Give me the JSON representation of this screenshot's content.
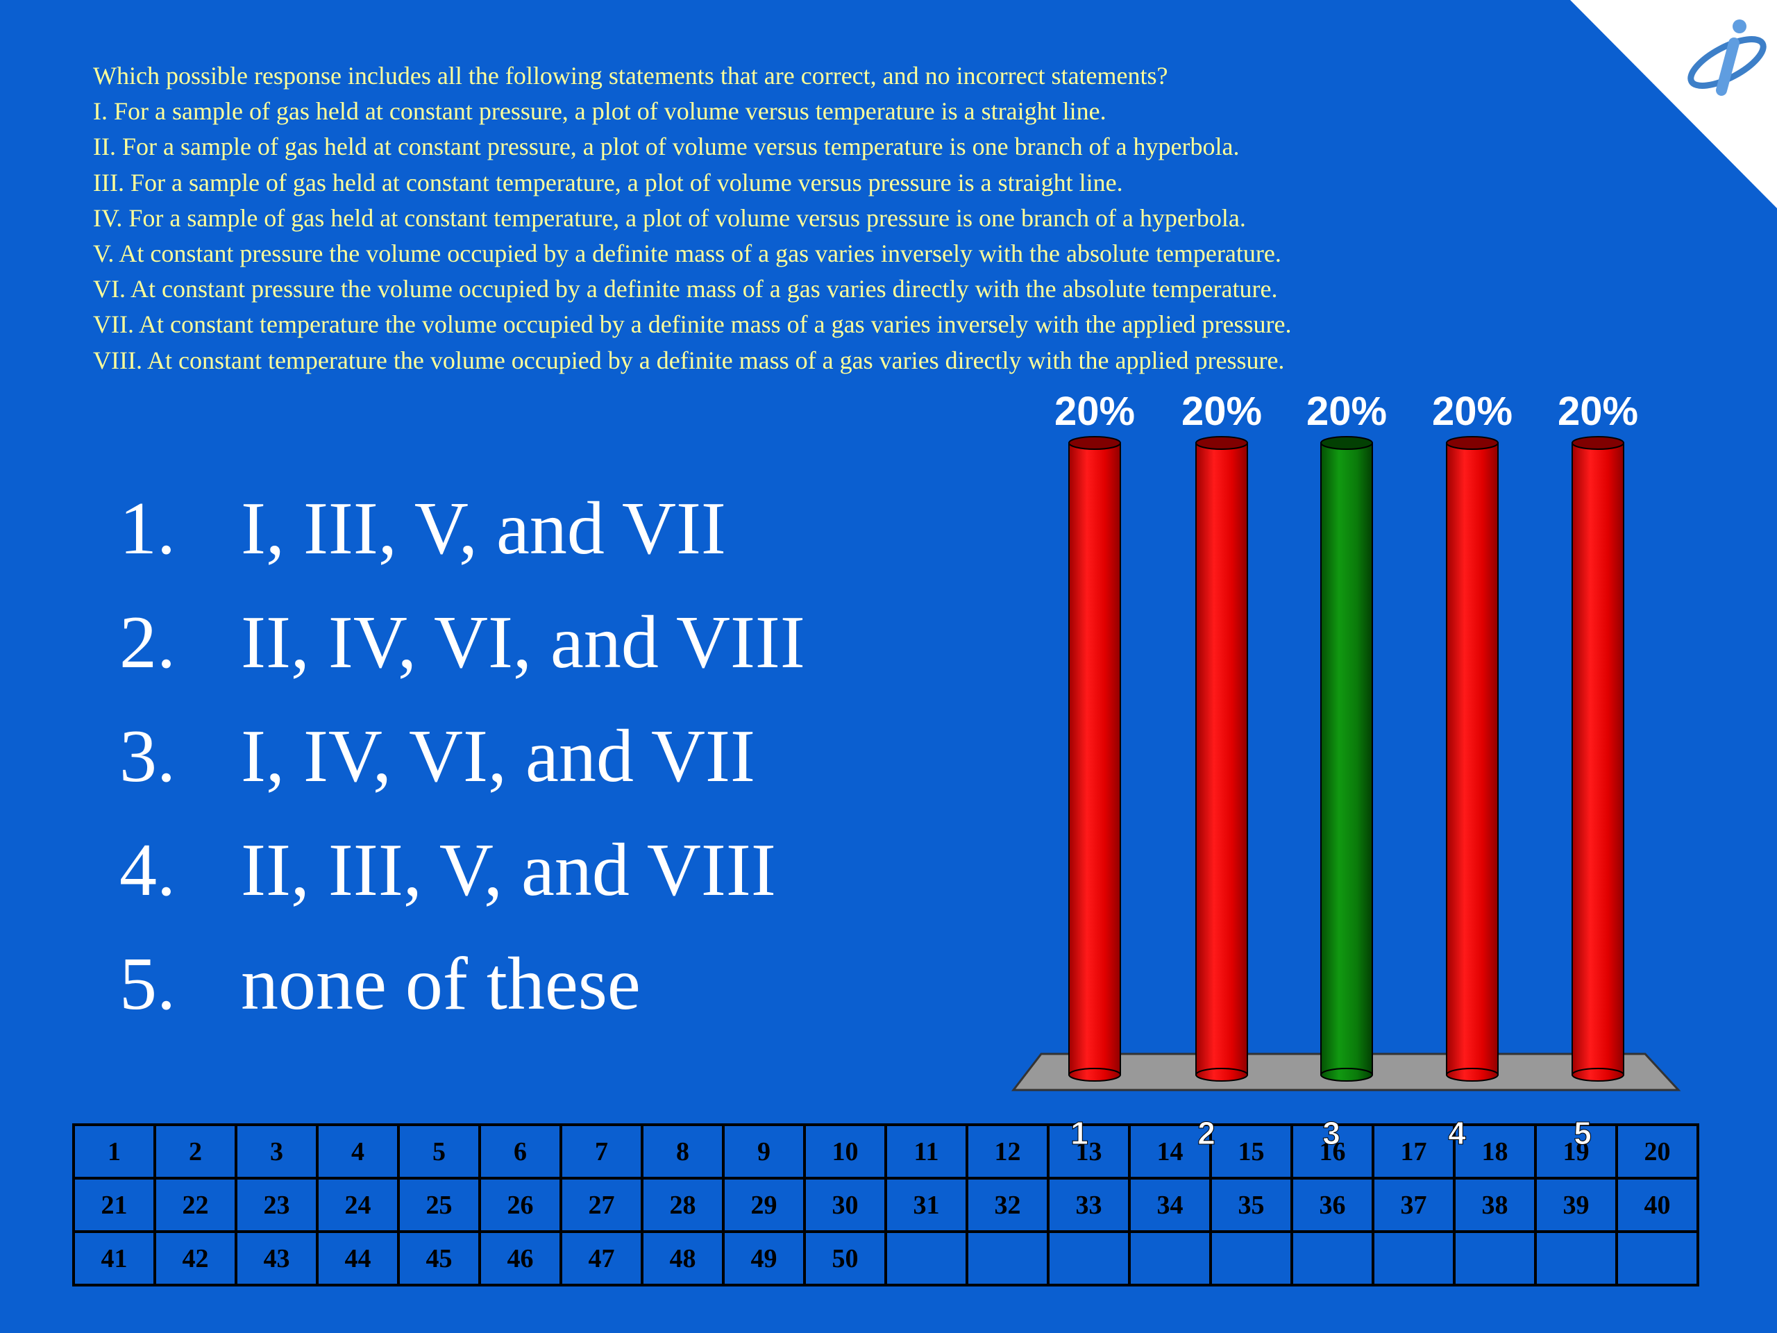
{
  "question": {
    "prompt": "Which possible response includes all the following statements that are correct, and no incorrect statements?",
    "statements": [
      "I. For a sample of gas held at constant pressure, a plot of volume versus temperature is a straight line.",
      "II. For a sample of gas held at constant pressure, a plot of volume versus temperature is one branch of a hyperbola.",
      "III. For a sample of gas held at constant temperature, a plot of volume versus pressure is a straight line.",
      "IV. For a sample of gas held at constant temperature, a plot of volume versus pressure is one branch of a hyperbola.",
      "V. At constant pressure the volume occupied by a definite mass of a gas varies inversely with the absolute temperature.",
      "VI. At constant pressure the volume occupied by a definite mass of a gas varies directly with the absolute temperature.",
      "VII. At constant temperature the volume occupied by a definite mass of a gas varies inversely with the applied pressure.",
      "VIII. At constant temperature the volume occupied by a definite mass of a gas varies directly with the applied pressure."
    ]
  },
  "answers": [
    {
      "num": "1.",
      "text": "I, III, V, and VII"
    },
    {
      "num": "2.",
      "text": "II, IV, VI, and VIII"
    },
    {
      "num": "3.",
      "text": "I, IV, VI, and VII"
    },
    {
      "num": "4.",
      "text": "II, III, V, and VIII"
    },
    {
      "num": "5.",
      "text": "none of these"
    }
  ],
  "chart_data": {
    "type": "bar",
    "categories": [
      "1",
      "2",
      "3",
      "4",
      "5"
    ],
    "values": [
      20,
      20,
      20,
      20,
      20
    ],
    "data_labels": [
      "20%",
      "20%",
      "20%",
      "20%",
      "20%"
    ],
    "correct_index": 2,
    "ylim": [
      0,
      20
    ],
    "grid": false,
    "legend": "none",
    "colors": {
      "bar": "#ee0000",
      "correct": "#0a7a0a",
      "floor": "#999999"
    }
  },
  "responder_grid": {
    "rows": [
      [
        "1",
        "2",
        "3",
        "4",
        "5",
        "6",
        "7",
        "8",
        "9",
        "10",
        "11",
        "12",
        "13",
        "14",
        "15",
        "16",
        "17",
        "18",
        "19",
        "20"
      ],
      [
        "21",
        "22",
        "23",
        "24",
        "25",
        "26",
        "27",
        "28",
        "29",
        "30",
        "31",
        "32",
        "33",
        "34",
        "35",
        "36",
        "37",
        "38",
        "39",
        "40"
      ],
      [
        "41",
        "42",
        "43",
        "44",
        "45",
        "46",
        "47",
        "48",
        "49",
        "50",
        "",
        "",
        "",
        "",
        "",
        "",
        "",
        "",
        "",
        ""
      ]
    ]
  },
  "logo": {
    "icon": "info-i-logo-icon"
  },
  "colors": {
    "background": "#0b5fd0",
    "question_text": "#ffff99",
    "answer_text": "#ffffff",
    "corner": "#ffffff"
  }
}
